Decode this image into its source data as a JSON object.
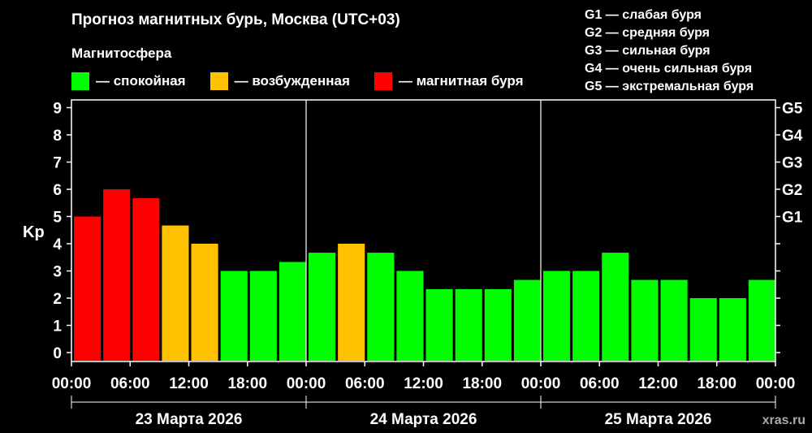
{
  "title": "Прогноз магнитных бурь, Москва (UTC+03)",
  "subtitle": "Магнитосфера",
  "legend": [
    {
      "label": "— спокойная",
      "color": "#00ff00"
    },
    {
      "label": "— возбужденная",
      "color": "#ffc000"
    },
    {
      "label": "— магнитная буря",
      "color": "#ff0000"
    }
  ],
  "g_legend": [
    "G1 — слабая буря",
    "G2 — средняя буря",
    "G3 — сильная буря",
    "G4 — очень сильная буря",
    "G5 — экстремальная буря"
  ],
  "watermark": "xras.ru",
  "chart_data": {
    "type": "bar",
    "ylabel": "Kp",
    "ylim": [
      0,
      9
    ],
    "y_ticks": [
      "0",
      "1",
      "2",
      "3",
      "4",
      "5",
      "6",
      "7",
      "8",
      "9"
    ],
    "g_ticks": [
      {
        "value": 5,
        "label": "G1"
      },
      {
        "value": 6,
        "label": "G2"
      },
      {
        "value": 7,
        "label": "G3"
      },
      {
        "value": 8,
        "label": "G4"
      },
      {
        "value": 9,
        "label": "G5"
      }
    ],
    "x_ticks": [
      "00:00",
      "06:00",
      "12:00",
      "18:00",
      "00:00",
      "06:00",
      "12:00",
      "18:00",
      "00:00",
      "06:00",
      "12:00",
      "18:00",
      "00:00"
    ],
    "days": [
      "23 Марта 2026",
      "24 Марта 2026",
      "25 Марта 2026"
    ],
    "grid": false,
    "values": [
      5.0,
      6.0,
      5.67,
      4.67,
      4.0,
      3.0,
      3.0,
      3.33,
      3.67,
      4.0,
      3.67,
      3.0,
      2.33,
      2.33,
      2.33,
      2.67,
      3.0,
      3.0,
      3.67,
      2.67,
      2.67,
      2.0,
      2.0,
      2.67
    ],
    "colors": [
      "#ff0000",
      "#ff0000",
      "#ff0000",
      "#ffc000",
      "#ffc000",
      "#00ff00",
      "#00ff00",
      "#00ff00",
      "#00ff00",
      "#ffc000",
      "#00ff00",
      "#00ff00",
      "#00ff00",
      "#00ff00",
      "#00ff00",
      "#00ff00",
      "#00ff00",
      "#00ff00",
      "#00ff00",
      "#00ff00",
      "#00ff00",
      "#00ff00",
      "#00ff00",
      "#00ff00"
    ]
  }
}
